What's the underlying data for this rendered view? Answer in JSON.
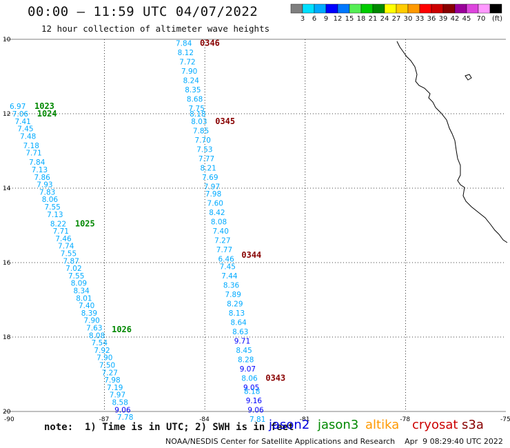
{
  "header": {
    "title": "00:00 – 11:59 UTC 04/07/2022",
    "subtitle": "12 hour collection of altimeter wave heights"
  },
  "colorbar": {
    "colors": [
      "#7f7f7f",
      "#00e0ff",
      "#00aaff",
      "#0000ff",
      "#0077ff",
      "#55ee55",
      "#00cc00",
      "#008800",
      "#ffff00",
      "#ffcc00",
      "#ff9900",
      "#ff0000",
      "#cc0000",
      "#880000",
      "#990099",
      "#dd44dd",
      "#ff99ff",
      "#000000"
    ],
    "labels": [
      "3",
      "6",
      "9",
      "12",
      "15",
      "18",
      "21",
      "24",
      "27",
      "30",
      "33",
      "36",
      "39",
      "42",
      "45",
      "70"
    ],
    "unit": "(ft)"
  },
  "axes": {
    "y_labels": [
      "10",
      "12",
      "14",
      "16",
      "18",
      "20"
    ],
    "x_labels": [
      "-90",
      "-87",
      "-84",
      "-81",
      "-78",
      "-75"
    ]
  },
  "tracks": [
    {
      "times": [
        {
          "label": "0346",
          "lat": 10.1,
          "color": "#880000"
        },
        {
          "label": "0345",
          "lat": 12.2,
          "color": "#880000"
        },
        {
          "label": "0344",
          "lat": 15.8,
          "color": "#880000"
        },
        {
          "label": "0343",
          "lat": 19.1,
          "color": "#880000"
        }
      ],
      "points": [
        {
          "lat": 10.1,
          "swh": "7.84"
        },
        {
          "lat": 10.35,
          "swh": "8.12"
        },
        {
          "lat": 10.6,
          "swh": "7.72"
        },
        {
          "lat": 10.85,
          "swh": "7.90"
        },
        {
          "lat": 11.1,
          "swh": "8.24"
        },
        {
          "lat": 11.35,
          "swh": "8.35"
        },
        {
          "lat": 11.6,
          "swh": "8.68"
        },
        {
          "lat": 11.85,
          "swh": "7.75"
        },
        {
          "lat": 12.0,
          "swh": "8.18"
        },
        {
          "lat": 12.2,
          "swh": "8.03"
        },
        {
          "lat": 12.45,
          "swh": "7.85"
        },
        {
          "lat": 12.7,
          "swh": "7.70"
        },
        {
          "lat": 12.95,
          "swh": "7.53"
        },
        {
          "lat": 13.2,
          "swh": "7.77"
        },
        {
          "lat": 13.45,
          "swh": "8.21"
        },
        {
          "lat": 13.7,
          "swh": "7.69"
        },
        {
          "lat": 13.95,
          "swh": "7.97"
        },
        {
          "lat": 14.15,
          "swh": "7.98"
        },
        {
          "lat": 14.4,
          "swh": "7.60"
        },
        {
          "lat": 14.65,
          "swh": "8.42"
        },
        {
          "lat": 14.9,
          "swh": "8.08"
        },
        {
          "lat": 15.15,
          "swh": "7.40"
        },
        {
          "lat": 15.4,
          "swh": "7.27"
        },
        {
          "lat": 15.65,
          "swh": "7.77"
        },
        {
          "lat": 15.9,
          "swh": "6.46"
        },
        {
          "lat": 16.1,
          "swh": "7.45"
        },
        {
          "lat": 16.35,
          "swh": "7.44"
        },
        {
          "lat": 16.6,
          "swh": "8.36"
        },
        {
          "lat": 16.85,
          "swh": "7.89"
        },
        {
          "lat": 17.1,
          "swh": "8.29"
        },
        {
          "lat": 17.35,
          "swh": "8.13"
        },
        {
          "lat": 17.6,
          "swh": "8.64"
        },
        {
          "lat": 17.85,
          "swh": "8.63"
        },
        {
          "lat": 18.1,
          "swh": "9.71"
        },
        {
          "lat": 18.35,
          "swh": "8.45"
        },
        {
          "lat": 18.6,
          "swh": "8.28"
        },
        {
          "lat": 18.85,
          "swh": "9.07"
        },
        {
          "lat": 19.1,
          "swh": "8.06"
        },
        {
          "lat": 19.35,
          "swh": "9.05"
        },
        {
          "lat": 19.45,
          "swh": "8.18"
        },
        {
          "lat": 19.7,
          "swh": "9.16"
        },
        {
          "lat": 19.95,
          "swh": "9.06"
        },
        {
          "lat": 20.2,
          "swh": "7.81"
        }
      ]
    },
    {
      "times": [
        {
          "label": "1023",
          "lat": 11.8,
          "color": "#008800"
        },
        {
          "label": "1024",
          "lat": 12.0,
          "color": "#008800"
        },
        {
          "label": "1025",
          "lat": 14.95,
          "color": "#008800"
        },
        {
          "label": "1026",
          "lat": 17.8,
          "color": "#008800"
        }
      ],
      "points": [
        {
          "lat": 11.8,
          "swh": "6.97"
        },
        {
          "lat": 12.0,
          "swh": "7.06"
        },
        {
          "lat": 12.2,
          "swh": "7.41"
        },
        {
          "lat": 12.4,
          "swh": "7.45"
        },
        {
          "lat": 12.6,
          "swh": "7.48"
        },
        {
          "lat": 12.85,
          "swh": "7.18"
        },
        {
          "lat": 13.05,
          "swh": "7.71"
        },
        {
          "lat": 13.3,
          "swh": "7.84"
        },
        {
          "lat": 13.5,
          "swh": "7.13"
        },
        {
          "lat": 13.7,
          "swh": "7.86"
        },
        {
          "lat": 13.9,
          "swh": "7.93"
        },
        {
          "lat": 14.1,
          "swh": "7.83"
        },
        {
          "lat": 14.3,
          "swh": "8.06"
        },
        {
          "lat": 14.5,
          "swh": "7.55"
        },
        {
          "lat": 14.7,
          "swh": "7.13"
        },
        {
          "lat": 14.95,
          "swh": "8.22"
        },
        {
          "lat": 15.15,
          "swh": "7.71"
        },
        {
          "lat": 15.35,
          "swh": "7.46"
        },
        {
          "lat": 15.55,
          "swh": "7.74"
        },
        {
          "lat": 15.75,
          "swh": "7.55"
        },
        {
          "lat": 15.95,
          "swh": "7.87"
        },
        {
          "lat": 16.15,
          "swh": "7.02"
        },
        {
          "lat": 16.35,
          "swh": "7.55"
        },
        {
          "lat": 16.55,
          "swh": "8.09"
        },
        {
          "lat": 16.75,
          "swh": "8.34"
        },
        {
          "lat": 16.95,
          "swh": "8.01"
        },
        {
          "lat": 17.15,
          "swh": "7.40"
        },
        {
          "lat": 17.35,
          "swh": "8.39"
        },
        {
          "lat": 17.55,
          "swh": "7.90"
        },
        {
          "lat": 17.75,
          "swh": "7.63"
        },
        {
          "lat": 17.95,
          "swh": "8.08"
        },
        {
          "lat": 18.15,
          "swh": "7.54"
        },
        {
          "lat": 18.35,
          "swh": "7.92"
        },
        {
          "lat": 18.55,
          "swh": "7.90"
        },
        {
          "lat": 18.75,
          "swh": "7.50"
        },
        {
          "lat": 18.95,
          "swh": "7.27"
        },
        {
          "lat": 19.15,
          "swh": "7.98"
        },
        {
          "lat": 19.35,
          "swh": "7.19"
        },
        {
          "lat": 19.55,
          "swh": "7.97"
        },
        {
          "lat": 19.75,
          "swh": "8.58"
        },
        {
          "lat": 19.95,
          "swh": "9.06"
        },
        {
          "lat": 20.15,
          "swh": "7.78"
        }
      ]
    }
  ],
  "footer": {
    "note": "note:  1) Time is in UTC; 2) SWH is in feet",
    "missions": [
      {
        "name": "jason2",
        "color": "#0000dd"
      },
      {
        "name": "jason3",
        "color": "#008800"
      },
      {
        "name": "altika",
        "color": "#ff9900"
      },
      {
        "name": "cryosat",
        "color": "#cc0000"
      },
      {
        "name": "s3a",
        "color": "#880000"
      }
    ],
    "credit": "NOAA/NESDIS Center for Satellite Applications and Research    Apr  9 08:29:40 UTC 2022"
  }
}
